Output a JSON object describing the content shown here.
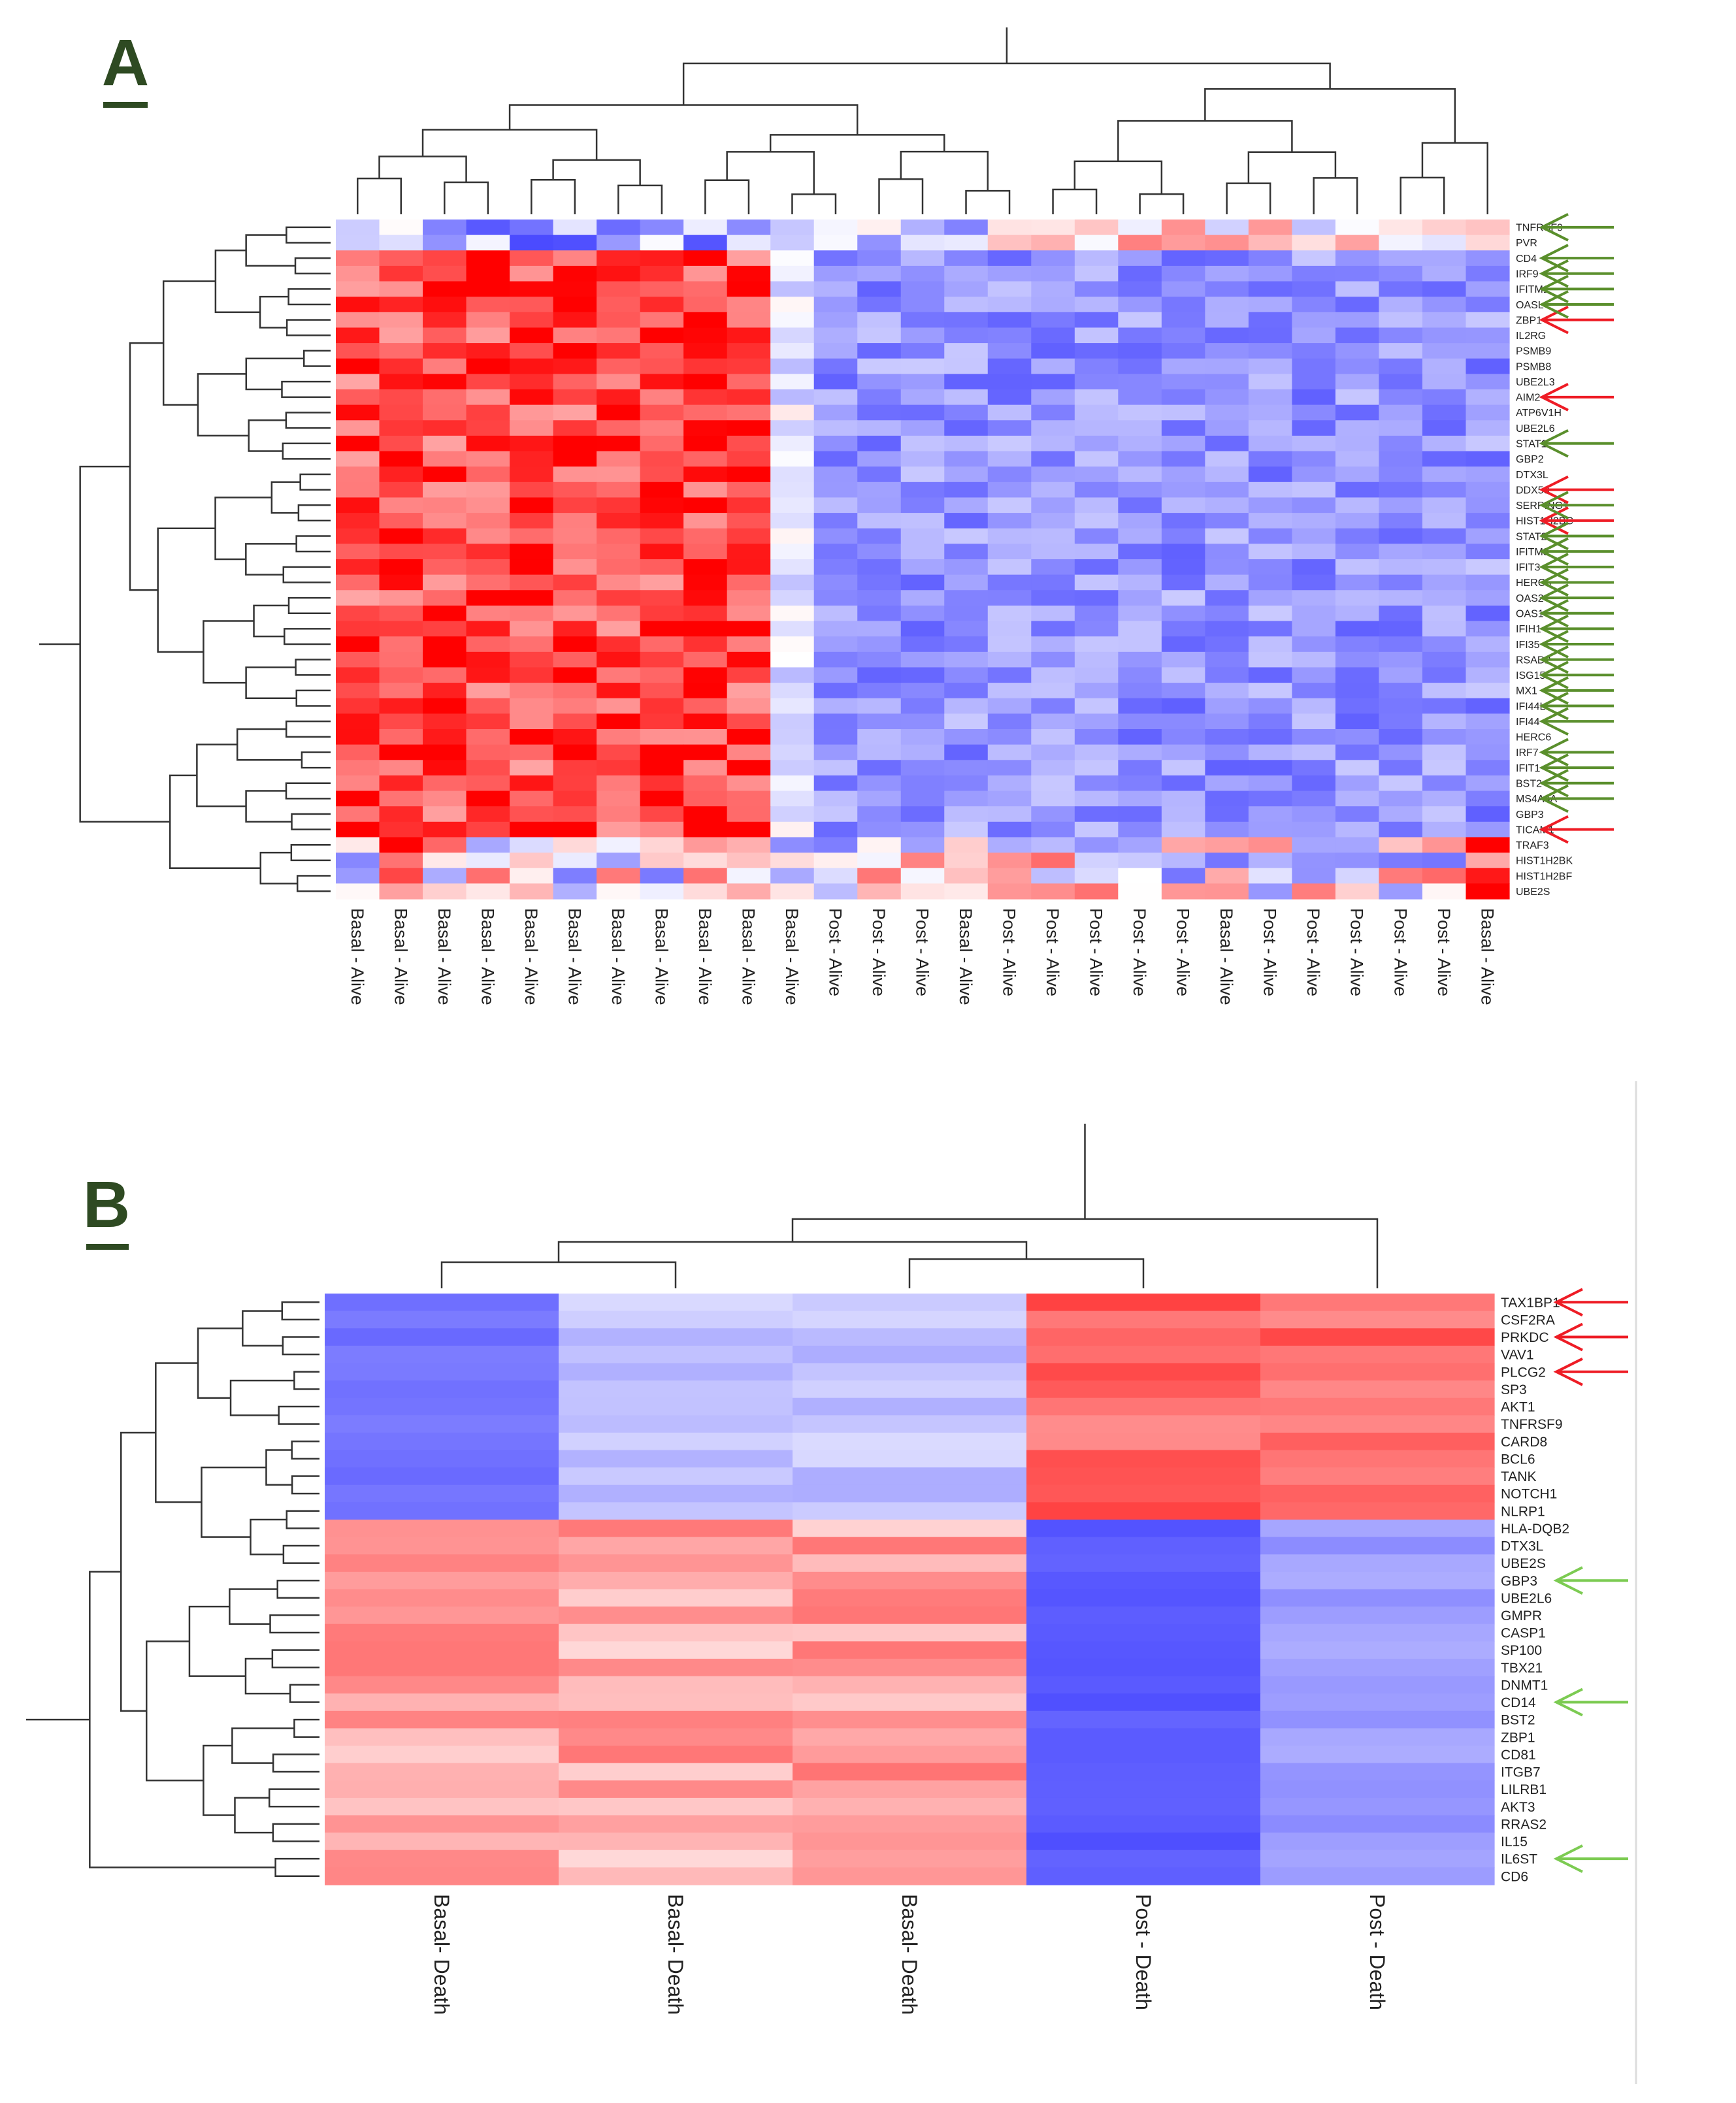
{
  "chart_data": [
    {
      "type": "heatmap",
      "panel_label": "A",
      "rows": [
        "TNFRSF9",
        "PVR",
        "CD4",
        "IRF9",
        "IFITM1",
        "OASL",
        "ZBP1",
        "IL2RG",
        "PSMB9",
        "PSMB8",
        "UBE2L3",
        "AIM2",
        "ATP6V1H",
        "UBE2L6",
        "STAT1",
        "GBP2",
        "DTX3L",
        "DDX58",
        "SERPING1",
        "HIST1H2BC",
        "STAT2",
        "IFITM3",
        "IFIT3",
        "HERC5",
        "OAS2",
        "OAS1",
        "IFIH1",
        "IFI35",
        "RSAD2",
        "ISG15",
        "MX1",
        "IFI44L",
        "IFI44",
        "HERC6",
        "IRF7",
        "IFIT1",
        "BST2",
        "MS4A4A",
        "GBP3",
        "TICAM1",
        "TRAF3",
        "HIST1H2BK",
        "HIST1H2BF",
        "UBE2S"
      ],
      "columns": [
        "Basal - Alive",
        "Basal - Alive",
        "Basal - Alive",
        "Basal - Alive",
        "Basal - Alive",
        "Basal - Alive",
        "Basal - Alive",
        "Basal - Alive",
        "Basal - Alive",
        "Basal - Alive",
        "Basal - Alive",
        "Post - Alive",
        "Post - Alive",
        "Post - Alive",
        "Basal - Alive",
        "Post - Alive",
        "Post - Alive",
        "Post - Alive",
        "Post - Alive",
        "Post - Alive",
        "Basal - Alive",
        "Post - Alive",
        "Post - Alive",
        "Post - Alive",
        "Post - Alive",
        "Post - Alive",
        "Basal - Alive"
      ],
      "highlight_arrows": {
        "red": [
          "ZBP1",
          "AIM2",
          "DDX58",
          "HIST1H2BC",
          "TICAM1"
        ],
        "green": [
          "TNFRSF9",
          "CD4",
          "IRF9",
          "IFITM1",
          "OASL",
          "STAT1",
          "SERPING1",
          "STAT2",
          "IFITM3",
          "IFIT3",
          "HERC5",
          "OAS2",
          "OAS1",
          "IFIH1",
          "IFI35",
          "RSAD2",
          "ISG15",
          "MX1",
          "IFI44L",
          "IFI44",
          "IRF7",
          "IFIT1",
          "BST2",
          "MS4A4A"
        ]
      },
      "color_scale": {
        "low": "#0000ff",
        "mid": "#ffffff",
        "high": "#ff0000"
      },
      "value_range": [
        -1,
        1
      ]
    },
    {
      "type": "heatmap",
      "panel_label": "B",
      "rows": [
        "TAX1BP1",
        "CSF2RA",
        "PRKDC",
        "VAV1",
        "PLCG2",
        "SP3",
        "AKT1",
        "TNFRSF9",
        "CARD8",
        "BCL6",
        "TANK",
        "NOTCH1",
        "NLRP1",
        "HLA-DQB2",
        "DTX3L",
        "UBE2S",
        "GBP3",
        "UBE2L6",
        "GMPR",
        "CASP1",
        "SP100",
        "TBX21",
        "DNMT1",
        "CD14",
        "BST2",
        "ZBP1",
        "CD81",
        "ITGB7",
        "LILRB1",
        "AKT3",
        "RRAS2",
        "IL15",
        "IL6ST",
        "CD6"
      ],
      "columns": [
        "Basal- Death",
        "Basal- Death",
        "Basal- Death",
        "Post - Death",
        "Post - Death"
      ],
      "highlight_arrows": {
        "red": [
          "TAX1BP1",
          "PRKDC",
          "PLCG2"
        ],
        "green": [
          "GBP3",
          "CD14",
          "IL6ST"
        ]
      },
      "color_scale": {
        "low": "#0000ff",
        "mid": "#ffffff",
        "high": "#ff0000"
      },
      "value_range": [
        -1,
        1
      ]
    }
  ],
  "colors": {
    "red_arrow": "#ee1c25",
    "green_arrow": "#5a8f2c",
    "green_arrow_light": "#7ccb52",
    "tree": "#333333"
  }
}
